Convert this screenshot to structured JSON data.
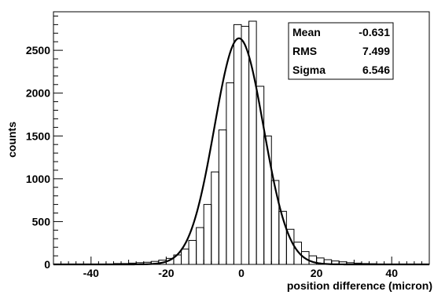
{
  "chart_data": {
    "type": "histogram",
    "xlabel": "position difference (micron)",
    "ylabel": "counts",
    "xlim": [
      -50,
      50
    ],
    "ylim": [
      0,
      2950
    ],
    "x_ticks": [
      -40,
      -20,
      0,
      20,
      40
    ],
    "y_ticks": [
      0,
      500,
      1000,
      1500,
      2000,
      2500
    ],
    "bin_width": 2,
    "histogram": {
      "bin_edges": [
        -50,
        -48,
        -46,
        -44,
        -42,
        -40,
        -38,
        -36,
        -34,
        -32,
        -30,
        -28,
        -26,
        -24,
        -22,
        -20,
        -18,
        -16,
        -14,
        -12,
        -10,
        -8,
        -6,
        -4,
        -2,
        0,
        2,
        4,
        6,
        8,
        10,
        12,
        14,
        16,
        18,
        20,
        22,
        24,
        26,
        28,
        30,
        32,
        34,
        36,
        38,
        40,
        42,
        44,
        46,
        48,
        50
      ],
      "counts": [
        0,
        0,
        0,
        0,
        0,
        0,
        0,
        5,
        10,
        10,
        15,
        20,
        25,
        35,
        50,
        70,
        110,
        180,
        280,
        430,
        700,
        1080,
        1570,
        2120,
        2800,
        2780,
        2840,
        2080,
        1500,
        980,
        620,
        410,
        260,
        150,
        100,
        75,
        55,
        40,
        30,
        20,
        15,
        10,
        8,
        5,
        3,
        2,
        0,
        0,
        0,
        0
      ]
    },
    "series": [
      {
        "type": "gaussian-fit",
        "mean": -0.631,
        "sigma": 6.546,
        "amplitude": 2640
      }
    ],
    "stats_box": {
      "rows": [
        {
          "label": "Mean",
          "value": "-0.631"
        },
        {
          "label": "RMS",
          "value": "7.499"
        },
        {
          "label": "Sigma",
          "value": "6.546"
        }
      ]
    },
    "grid": false
  }
}
